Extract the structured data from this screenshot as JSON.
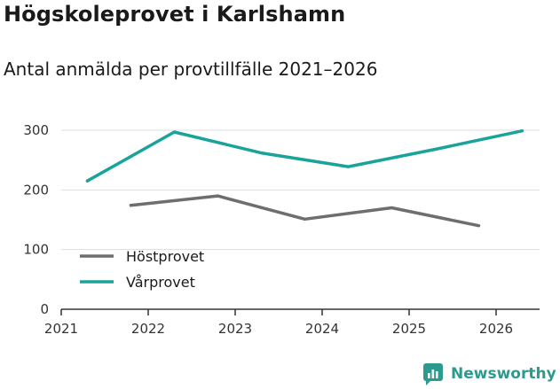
{
  "chart_data": {
    "type": "line",
    "title": "Högskoleprovet i Karlshamn",
    "subtitle": "Antal anmälda per provtillfälle 2021–2026",
    "xlabel": "",
    "ylabel": "",
    "ylim": [
      0,
      300
    ],
    "yticks": [
      0,
      100,
      200,
      300
    ],
    "xlim": [
      2021,
      2026.5
    ],
    "xticks": [
      2021,
      2022,
      2023,
      2024,
      2025,
      2026
    ],
    "grid": true,
    "legend_position": "bottom-left",
    "series": [
      {
        "name": "Höstprovet",
        "color": "#6e6e6e",
        "x": [
          2021.8,
          2022.8,
          2023.8,
          2024.8,
          2025.8
        ],
        "values": [
          174,
          190,
          151,
          170,
          140
        ]
      },
      {
        "name": "Vårprovet",
        "color": "#1aa39a",
        "x": [
          2021.3,
          2022.3,
          2023.3,
          2024.3,
          2025.3,
          2026.3
        ],
        "values": [
          215,
          297,
          262,
          239,
          268,
          299
        ]
      }
    ]
  },
  "brand": {
    "name": "Newsworthy",
    "icon": "newsworthy-logo-icon",
    "color": "#2d9a90"
  }
}
